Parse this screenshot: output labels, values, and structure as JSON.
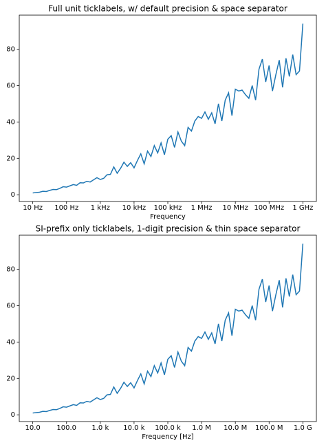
{
  "chart_data": [
    {
      "type": "line",
      "title": "Full unit ticklabels, w/ default precision & space separator",
      "x_label": "Frequency",
      "log_x": true,
      "x": [
        10,
        12.59,
        15.85,
        19.95,
        25.12,
        31.62,
        39.81,
        50.12,
        63.1,
        79.43,
        100,
        125.9,
        158.5,
        199.5,
        251.2,
        316.2,
        398.1,
        501.2,
        631,
        794.3,
        1000,
        1259,
        1585,
        1995,
        2512,
        3162,
        3981,
        5012,
        6310,
        7943,
        10000,
        12590,
        15850,
        19950,
        25120,
        31620,
        39810,
        50120,
        63100,
        79430,
        100000,
        125900,
        158500,
        199500,
        251200,
        316200,
        398100,
        501200,
        631000,
        794300,
        1000000,
        1259000,
        1585000,
        1995000,
        2512000,
        3162000,
        3981000,
        5012000,
        6310000,
        7943000,
        10000000,
        12590000,
        15850000,
        19950000,
        25120000,
        31620000,
        39810000,
        50120000,
        63100000,
        79430000,
        100000000,
        125900000,
        158500000,
        199500000,
        251200000,
        316200000,
        398100000,
        501200000,
        631000000,
        794300000,
        1000000000
      ],
      "series": [
        {
          "color": "#1f77b4",
          "values": [
            1.0,
            1.2,
            1.4,
            1.9,
            1.8,
            2.4,
            2.9,
            2.8,
            3.5,
            4.4,
            4.2,
            4.9,
            5.6,
            5.2,
            6.6,
            6.5,
            7.4,
            7.0,
            8.2,
            9.4,
            8.4,
            9.0,
            11.0,
            11.2,
            15.3,
            11.8,
            14.5,
            17.9,
            15.6,
            17.6,
            14.8,
            18.8,
            22.5,
            17.0,
            24.0,
            21.0,
            27.0,
            23.0,
            28.5,
            22.0,
            30.5,
            32.5,
            26.0,
            34.5,
            29.5,
            27.0,
            37.0,
            35.0,
            40.5,
            43.0,
            42.0,
            45.5,
            41.5,
            45.0,
            39.0,
            50.0,
            40.5,
            52.0,
            56.0,
            43.5,
            58.0,
            57.0,
            57.5,
            55.0,
            53.0,
            60.0,
            52.0,
            69.0,
            74.5,
            62.0,
            71.0,
            57.0,
            66.0,
            74.0,
            59.0,
            75.0,
            65.0,
            77.0,
            66.0,
            68.0,
            94.0
          ]
        }
      ],
      "xlim": [
        3.98,
        2512000000
      ],
      "xticks": [
        {
          "value": 10,
          "label": "10 Hz"
        },
        {
          "value": 100,
          "label": "100 Hz"
        },
        {
          "value": 1000,
          "label": "1 kHz"
        },
        {
          "value": 10000,
          "label": "10 kHz"
        },
        {
          "value": 100000,
          "label": "100 kHz"
        },
        {
          "value": 1000000,
          "label": "1 MHz"
        },
        {
          "value": 10000000,
          "label": "10 MHz"
        },
        {
          "value": 100000000,
          "label": "100 MHz"
        },
        {
          "value": 1000000000,
          "label": "1 GHz"
        }
      ],
      "ylim": [
        -3.7,
        98.7
      ],
      "yticks": [
        0,
        20,
        40,
        60,
        80
      ]
    },
    {
      "type": "line",
      "title": "SI-prefix only ticklabels, 1-digit precision & thin space separator",
      "x_label": "Frequency [Hz]",
      "log_x": true,
      "x": [
        10,
        12.59,
        15.85,
        19.95,
        25.12,
        31.62,
        39.81,
        50.12,
        63.1,
        79.43,
        100,
        125.9,
        158.5,
        199.5,
        251.2,
        316.2,
        398.1,
        501.2,
        631,
        794.3,
        1000,
        1259,
        1585,
        1995,
        2512,
        3162,
        3981,
        5012,
        6310,
        7943,
        10000,
        12590,
        15850,
        19950,
        25120,
        31620,
        39810,
        50120,
        63100,
        79430,
        100000,
        125900,
        158500,
        199500,
        251200,
        316200,
        398100,
        501200,
        631000,
        794300,
        1000000,
        1259000,
        1585000,
        1995000,
        2512000,
        3162000,
        3981000,
        5012000,
        6310000,
        7943000,
        10000000,
        12590000,
        15850000,
        19950000,
        25120000,
        31620000,
        39810000,
        50120000,
        63100000,
        79430000,
        100000000,
        125900000,
        158500000,
        199500000,
        251200000,
        316200000,
        398100000,
        501200000,
        631000000,
        794300000,
        1000000000
      ],
      "series": [
        {
          "color": "#1f77b4",
          "values": [
            1.0,
            1.2,
            1.4,
            1.9,
            1.8,
            2.4,
            2.9,
            2.8,
            3.5,
            4.4,
            4.2,
            4.9,
            5.6,
            5.2,
            6.6,
            6.5,
            7.4,
            7.0,
            8.2,
            9.4,
            8.4,
            9.0,
            11.0,
            11.2,
            15.3,
            11.8,
            14.5,
            17.9,
            15.6,
            17.6,
            14.8,
            18.8,
            22.5,
            17.0,
            24.0,
            21.0,
            27.0,
            23.0,
            28.5,
            22.0,
            30.5,
            32.5,
            26.0,
            34.5,
            29.5,
            27.0,
            37.0,
            35.0,
            40.5,
            43.0,
            42.0,
            45.5,
            41.5,
            45.0,
            39.0,
            50.0,
            40.5,
            52.0,
            56.0,
            43.5,
            58.0,
            57.0,
            57.5,
            55.0,
            53.0,
            60.0,
            52.0,
            69.0,
            74.5,
            62.0,
            71.0,
            57.0,
            66.0,
            74.0,
            59.0,
            75.0,
            65.0,
            77.0,
            66.0,
            68.0,
            94.0
          ]
        }
      ],
      "xlim": [
        3.98,
        2512000000
      ],
      "xticks": [
        {
          "value": 10,
          "label": "10.0"
        },
        {
          "value": 100,
          "label": "100.0"
        },
        {
          "value": 1000,
          "label": "1.0 k"
        },
        {
          "value": 10000,
          "label": "10.0 k"
        },
        {
          "value": 100000,
          "label": "100.0 k"
        },
        {
          "value": 1000000,
          "label": "1.0 M"
        },
        {
          "value": 10000000,
          "label": "10.0 M"
        },
        {
          "value": 100000000,
          "label": "100.0 M"
        },
        {
          "value": 1000000000,
          "label": "1.0 G"
        }
      ],
      "ylim": [
        -3.7,
        98.7
      ],
      "yticks": [
        0,
        20,
        40,
        60,
        80
      ]
    }
  ]
}
